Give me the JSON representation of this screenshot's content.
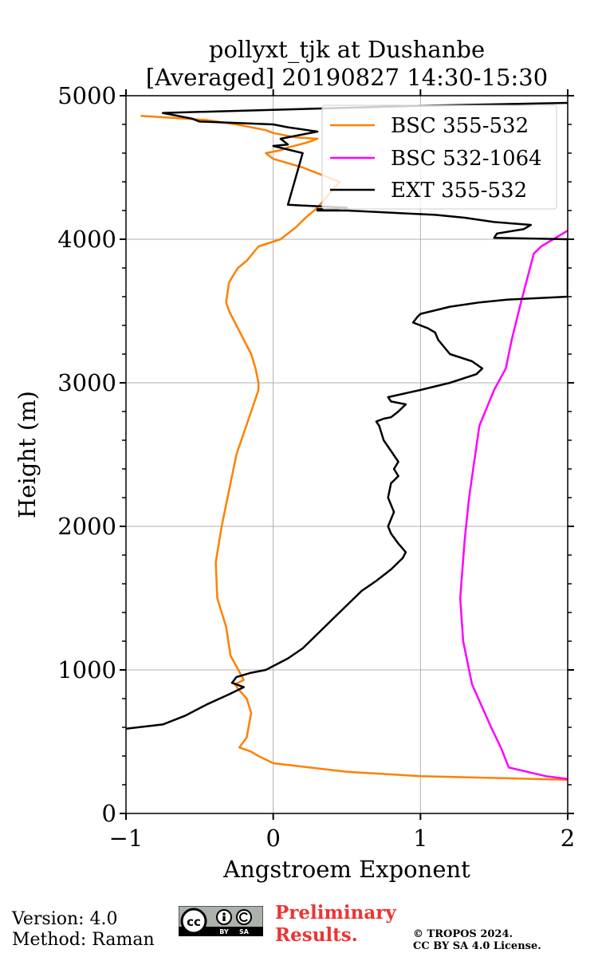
{
  "chart_data": {
    "type": "line",
    "title_line1": "pollyxt_tjk at Dushanbe",
    "title_line2": "[Averaged] 20190827 14:30-15:30",
    "xlabel": "Angstroem Exponent",
    "ylabel": "Height (m)",
    "xlim": [
      -1,
      2
    ],
    "ylim": [
      0,
      5000
    ],
    "x_ticks": [
      -1,
      0,
      1,
      2
    ],
    "x_tick_labels": [
      "−1",
      "0",
      "1",
      "2"
    ],
    "y_ticks": [
      0,
      1000,
      2000,
      3000,
      4000,
      5000
    ],
    "y_tick_labels": [
      "0",
      "1000",
      "2000",
      "3000",
      "4000",
      "5000"
    ],
    "grid": true,
    "legend_position": "top-right",
    "series": [
      {
        "name": "BSC 355-532",
        "color": "#ff8000",
        "x": [
          2.0,
          1.0,
          0.5,
          0.0,
          -0.1,
          -0.15,
          -0.23,
          -0.18,
          -0.15,
          -0.18,
          -0.24,
          -0.26,
          -0.2,
          -0.29,
          -0.32,
          -0.38,
          -0.39,
          -0.35,
          -0.25,
          -0.15,
          -0.1,
          -0.1,
          -0.12,
          -0.15,
          -0.25,
          -0.3,
          -0.32,
          -0.3,
          -0.24,
          -0.18,
          -0.1,
          0.05,
          0.15,
          0.22,
          0.3,
          0.45,
          0.3,
          0.2,
          0.0,
          -0.05,
          0.05,
          0.1,
          0.18,
          0.25,
          0.3,
          0.15,
          0.0,
          -0.05,
          -0.25,
          -0.45,
          -0.6,
          -0.9
        ],
        "y": [
          235,
          260,
          290,
          350,
          400,
          430,
          460,
          530,
          700,
          800,
          870,
          900,
          930,
          1100,
          1300,
          1500,
          1750,
          2000,
          2500,
          2800,
          2950,
          3000,
          3100,
          3200,
          3400,
          3500,
          3560,
          3700,
          3800,
          3850,
          3950,
          4000,
          4080,
          4150,
          4220,
          4400,
          4460,
          4500,
          4560,
          4600,
          4620,
          4640,
          4660,
          4680,
          4700,
          4710,
          4740,
          4760,
          4800,
          4830,
          4840,
          4860
        ]
      },
      {
        "name": "BSC 532-1064",
        "color": "#ff00ff",
        "x": [
          2.0,
          1.85,
          1.6,
          1.55,
          1.48,
          1.35,
          1.29,
          1.27,
          1.3,
          1.33,
          1.4,
          1.5,
          1.58,
          1.62,
          1.68,
          1.77,
          1.82,
          2.0
        ],
        "y": [
          240,
          260,
          320,
          450,
          600,
          900,
          1200,
          1500,
          1900,
          2200,
          2700,
          2950,
          3100,
          3300,
          3550,
          3900,
          3950,
          4060
        ]
      },
      {
        "name": "EXT 355-532",
        "color": "#000000",
        "x": [
          -1.0,
          -0.75,
          -0.6,
          -0.45,
          -0.3,
          -0.2,
          -0.28,
          -0.25,
          -0.15,
          -0.05,
          0.1,
          0.2,
          0.3,
          0.4,
          0.5,
          0.6,
          0.7,
          0.8,
          0.88,
          0.9,
          0.85,
          0.8,
          0.78,
          0.8,
          0.82,
          0.78,
          0.8,
          0.85,
          0.82,
          0.85,
          0.75,
          0.72,
          0.7,
          0.75,
          0.8,
          0.85,
          0.9,
          0.8,
          0.78,
          1.0,
          1.2,
          1.38,
          1.42,
          1.35,
          1.2,
          1.12,
          1.1,
          1.05,
          1.0,
          0.95,
          0.98,
          1.0,
          1.2,
          1.4,
          1.6,
          2.0,
          2.0,
          1.5,
          1.52,
          1.7,
          1.75,
          1.5,
          1.3,
          1.1,
          0.9,
          0.7,
          0.5,
          0.3,
          0.3,
          0.4,
          0.5,
          0.3,
          0.1,
          0.2,
          0.0,
          0.1,
          0.05,
          0.3,
          0.1,
          0.0,
          -0.5,
          -0.55,
          -0.75,
          1.0,
          2.0
        ],
        "y": [
          590,
          620,
          680,
          760,
          830,
          880,
          910,
          950,
          980,
          1000,
          1080,
          1150,
          1250,
          1350,
          1450,
          1550,
          1620,
          1700,
          1780,
          1820,
          1880,
          1950,
          2000,
          2050,
          2100,
          2200,
          2300,
          2350,
          2400,
          2450,
          2600,
          2700,
          2730,
          2750,
          2760,
          2800,
          2850,
          2870,
          2900,
          2950,
          3000,
          3060,
          3100,
          3150,
          3200,
          3300,
          3350,
          3380,
          3400,
          3420,
          3460,
          3480,
          3530,
          3560,
          3580,
          3600,
          4000,
          4010,
          4040,
          4070,
          4100,
          4120,
          4150,
          4170,
          4180,
          4190,
          4200,
          4200,
          4210,
          4210,
          4220,
          4230,
          4240,
          4600,
          4650,
          4660,
          4700,
          4750,
          4780,
          4800,
          4820,
          4840,
          4880,
          4930,
          4950
        ]
      }
    ]
  },
  "footer": {
    "version": "Version: 4.0",
    "method": "Method: Raman",
    "cc_logo_text": "cc",
    "cc_by": "BY",
    "cc_sa": "SA",
    "preliminary_line1": "Preliminary",
    "preliminary_line2": "Results.",
    "copyright_line1": "© TROPOS 2024.",
    "copyright_line2": "CC BY SA 4.0 License."
  }
}
